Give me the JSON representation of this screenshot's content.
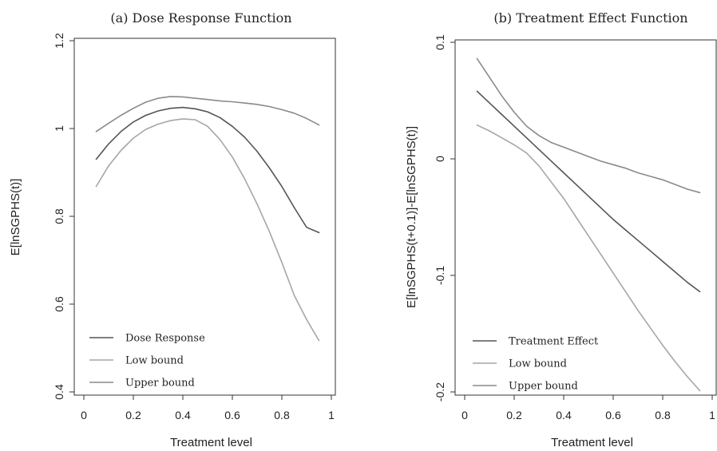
{
  "chart_data": [
    {
      "type": "line",
      "title": "(a) Dose Response Function",
      "xlabel": "Treatment level",
      "ylabel": "E[lnSGPHS(t)]",
      "xlim": [
        0,
        1
      ],
      "ylim": [
        0.4,
        1.2
      ],
      "xticks": [
        "0",
        "0.2",
        "0.4",
        "0.6",
        "0.8",
        "1"
      ],
      "yticks": [
        "0.4",
        "0.6",
        "0.8",
        "1",
        "1.2"
      ],
      "grid": false,
      "legend": "bottom-left",
      "series": [
        {
          "name": "Dose Response",
          "color": "#555555",
          "x": [
            0.05,
            0.1,
            0.15,
            0.2,
            0.25,
            0.3,
            0.35,
            0.4,
            0.45,
            0.5,
            0.55,
            0.6,
            0.65,
            0.7,
            0.75,
            0.8,
            0.85,
            0.9,
            0.95
          ],
          "y": [
            0.93,
            0.965,
            0.993,
            1.015,
            1.03,
            1.04,
            1.046,
            1.048,
            1.045,
            1.038,
            1.025,
            1.005,
            0.98,
            0.948,
            0.91,
            0.868,
            0.82,
            0.775,
            0.763
          ]
        },
        {
          "name": "Low bound",
          "color": "#a6a6a6",
          "x": [
            0.05,
            0.1,
            0.15,
            0.2,
            0.25,
            0.3,
            0.35,
            0.4,
            0.45,
            0.5,
            0.55,
            0.6,
            0.65,
            0.7,
            0.75,
            0.8,
            0.85,
            0.9,
            0.95
          ],
          "y": [
            0.868,
            0.915,
            0.95,
            0.978,
            0.998,
            1.01,
            1.018,
            1.022,
            1.02,
            1.005,
            0.975,
            0.935,
            0.885,
            0.828,
            0.765,
            0.695,
            0.62,
            0.565,
            0.517
          ]
        },
        {
          "name": "Upper bound",
          "color": "#8a8a8a",
          "x": [
            0.05,
            0.1,
            0.15,
            0.2,
            0.25,
            0.3,
            0.35,
            0.4,
            0.45,
            0.5,
            0.55,
            0.6,
            0.65,
            0.7,
            0.75,
            0.8,
            0.85,
            0.9,
            0.95
          ],
          "y": [
            0.993,
            1.012,
            1.03,
            1.046,
            1.06,
            1.069,
            1.073,
            1.072,
            1.069,
            1.066,
            1.063,
            1.061,
            1.058,
            1.055,
            1.05,
            1.043,
            1.035,
            1.023,
            1.008
          ]
        }
      ]
    },
    {
      "type": "line",
      "title": "(b) Treatment Effect Function",
      "xlabel": "Treatment level",
      "ylabel": "E[lnSGPHS(t+0.1)]-E[lnSGPHS(t)]",
      "xlim": [
        0,
        1
      ],
      "ylim": [
        -0.2,
        0.1
      ],
      "xticks": [
        "0",
        "0.2",
        "0.4",
        "0.6",
        "0.8",
        "1"
      ],
      "yticks": [
        "-0.2",
        "-0.1",
        "0",
        "0.1"
      ],
      "grid": false,
      "legend": "bottom-left",
      "series": [
        {
          "name": "Treatment Effect",
          "color": "#555555",
          "x": [
            0.05,
            0.1,
            0.15,
            0.2,
            0.25,
            0.3,
            0.35,
            0.4,
            0.45,
            0.5,
            0.55,
            0.6,
            0.65,
            0.7,
            0.75,
            0.8,
            0.85,
            0.9,
            0.95
          ],
          "y": [
            0.058,
            0.048,
            0.038,
            0.028,
            0.018,
            0.008,
            -0.002,
            -0.012,
            -0.022,
            -0.032,
            -0.042,
            -0.052,
            -0.061,
            -0.07,
            -0.079,
            -0.088,
            -0.097,
            -0.106,
            -0.114
          ]
        },
        {
          "name": "Low bound",
          "color": "#a6a6a6",
          "x": [
            0.05,
            0.1,
            0.15,
            0.2,
            0.25,
            0.3,
            0.35,
            0.4,
            0.45,
            0.5,
            0.55,
            0.6,
            0.65,
            0.7,
            0.75,
            0.8,
            0.85,
            0.9,
            0.95
          ],
          "y": [
            0.029,
            0.024,
            0.018,
            0.012,
            0.005,
            -0.006,
            -0.02,
            -0.034,
            -0.05,
            -0.066,
            -0.082,
            -0.098,
            -0.114,
            -0.13,
            -0.145,
            -0.16,
            -0.174,
            -0.187,
            -0.199
          ]
        },
        {
          "name": "Upper bound",
          "color": "#8a8a8a",
          "x": [
            0.05,
            0.1,
            0.15,
            0.2,
            0.25,
            0.3,
            0.35,
            0.4,
            0.45,
            0.5,
            0.55,
            0.6,
            0.65,
            0.7,
            0.75,
            0.8,
            0.85,
            0.9,
            0.95
          ],
          "y": [
            0.086,
            0.07,
            0.054,
            0.04,
            0.028,
            0.02,
            0.014,
            0.01,
            0.006,
            0.002,
            -0.002,
            -0.005,
            -0.008,
            -0.012,
            -0.015,
            -0.018,
            -0.022,
            -0.026,
            -0.029
          ]
        }
      ]
    }
  ]
}
